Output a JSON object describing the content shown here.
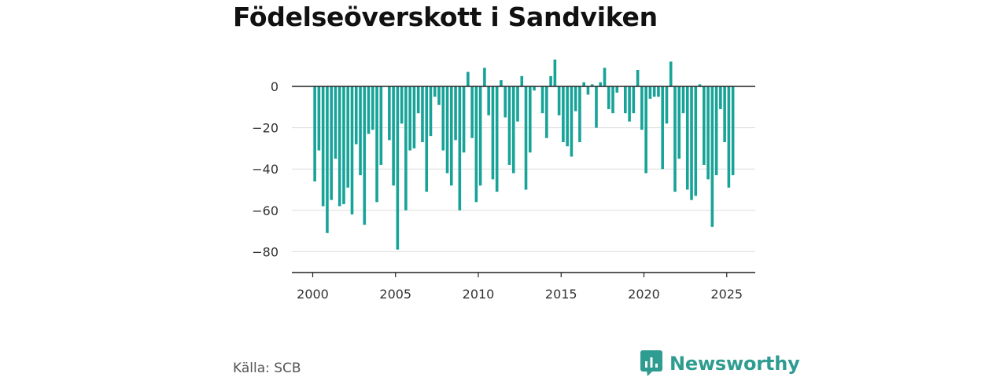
{
  "title": "Födelseöverskott i Sandviken",
  "source": "Källa: SCB",
  "brand": {
    "name": "Newsworthy",
    "icon": "bar-chart-icon",
    "color": "#2e9c90"
  },
  "chart_data": {
    "type": "bar",
    "bar_color": "#17a398",
    "grid": true,
    "ylim": [
      -90,
      15
    ],
    "y_ticks": [
      0,
      -20,
      -40,
      -60,
      -80
    ],
    "y_tick_labels": [
      "0",
      "−20",
      "−40",
      "−60",
      "−80"
    ],
    "x_ticks": [
      2000,
      2005,
      2010,
      2015,
      2020,
      2025
    ],
    "x_tick_labels": [
      "2000",
      "2005",
      "2010",
      "2015",
      "2020",
      "2025"
    ],
    "series": [
      {
        "start_year": 2000,
        "periods_per_year": 4,
        "values": [
          -46,
          -31,
          -58,
          -71,
          -55,
          -35,
          -58,
          -57,
          -49,
          -62,
          -28,
          -43,
          -67,
          -23,
          -21,
          -56,
          -38,
          0,
          -26,
          -48,
          -79,
          -18,
          -60,
          -31,
          -30,
          -13,
          -27,
          -51,
          -24,
          -5,
          -9,
          -31,
          -42,
          -48,
          -26,
          -60,
          -32,
          7,
          -25,
          -56,
          -48,
          9,
          -14,
          -45,
          -51,
          3,
          -15,
          -38,
          -42,
          -17,
          5,
          -50,
          -32,
          -2,
          0,
          -13,
          -25,
          5,
          13,
          -14,
          -27,
          -29,
          -34,
          -12,
          -27,
          2,
          -4,
          1,
          -20,
          2,
          9,
          -11,
          -13,
          -3,
          0,
          -13,
          -17,
          -13,
          8,
          -21,
          -42,
          -6,
          -5,
          -5,
          -40,
          -18,
          12,
          -51,
          -35,
          -13,
          -50,
          -55,
          -53,
          1,
          -38,
          -45,
          -68,
          -43,
          -11,
          -27,
          -49,
          -43
        ]
      }
    ]
  }
}
